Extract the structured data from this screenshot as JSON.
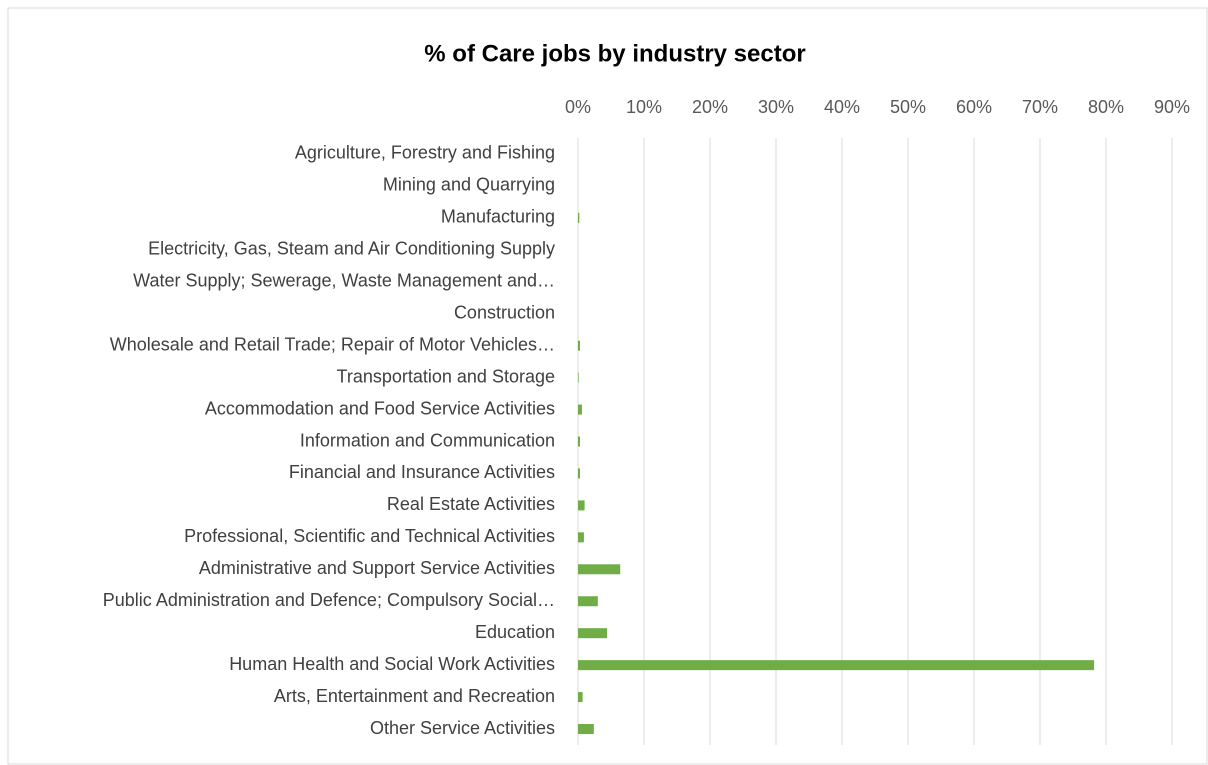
{
  "chart_data": {
    "type": "hbar",
    "title": "% of Care jobs by industry sector",
    "categories": [
      "Agriculture, Forestry and Fishing",
      "Mining and Quarrying",
      "Manufacturing",
      "Electricity, Gas, Steam and Air Conditioning Supply",
      "Water Supply; Sewerage, Waste Management and…",
      "Construction",
      "Wholesale and Retail Trade; Repair of Motor Vehicles…",
      "Transportation and Storage",
      "Accommodation and Food Service Activities",
      "Information and Communication",
      "Financial and Insurance Activities",
      "Real Estate Activities",
      "Professional, Scientific and Technical Activities",
      "Administrative and Support Service Activities",
      "Public Administration and Defence; Compulsory Social…",
      "Education",
      "Human Health and Social Work Activities",
      "Arts, Entertainment and Recreation",
      "Other Service Activities"
    ],
    "values": [
      0,
      0,
      0.2,
      0,
      0,
      0,
      0.3,
      0.1,
      0.6,
      0.3,
      0.3,
      1.0,
      0.9,
      6.4,
      3.0,
      4.4,
      78.2,
      0.7,
      2.4
    ],
    "color": "#70ad47",
    "xlim": [
      0,
      90
    ],
    "xticks": [
      {
        "value": 0,
        "label": "0%"
      },
      {
        "value": 10,
        "label": "10%"
      },
      {
        "value": 20,
        "label": "20%"
      },
      {
        "value": 30,
        "label": "30%"
      },
      {
        "value": 40,
        "label": "40%"
      },
      {
        "value": 50,
        "label": "50%"
      },
      {
        "value": 60,
        "label": "60%"
      },
      {
        "value": 70,
        "label": "70%"
      },
      {
        "value": 80,
        "label": "80%"
      },
      {
        "value": 90,
        "label": "90%"
      }
    ],
    "grid": true
  }
}
